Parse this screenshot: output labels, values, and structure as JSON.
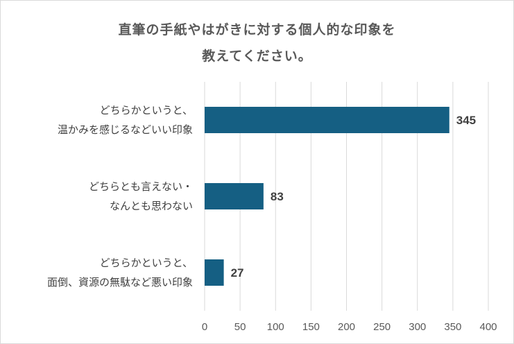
{
  "chart_data": {
    "type": "bar",
    "orientation": "horizontal",
    "title_lines": [
      "直筆の手紙やはがきに対する個人的な印象を",
      "教えてください。"
    ],
    "categories": [
      [
        "どちらかというと、",
        "温かみを感じるなどいい印象"
      ],
      [
        "どちらとも言えない・",
        "なんとも思わない"
      ],
      [
        "どちらかというと、",
        "面倒、資源の無駄など悪い印象"
      ]
    ],
    "values": [
      345,
      83,
      27
    ],
    "data_labels": [
      "345",
      "83",
      "27"
    ],
    "xlim": [
      0,
      400
    ],
    "ticks": [
      "0",
      "50",
      "100",
      "150",
      "200",
      "250",
      "300",
      "350",
      "400"
    ],
    "grid": true,
    "bar_color": "#155f83"
  }
}
